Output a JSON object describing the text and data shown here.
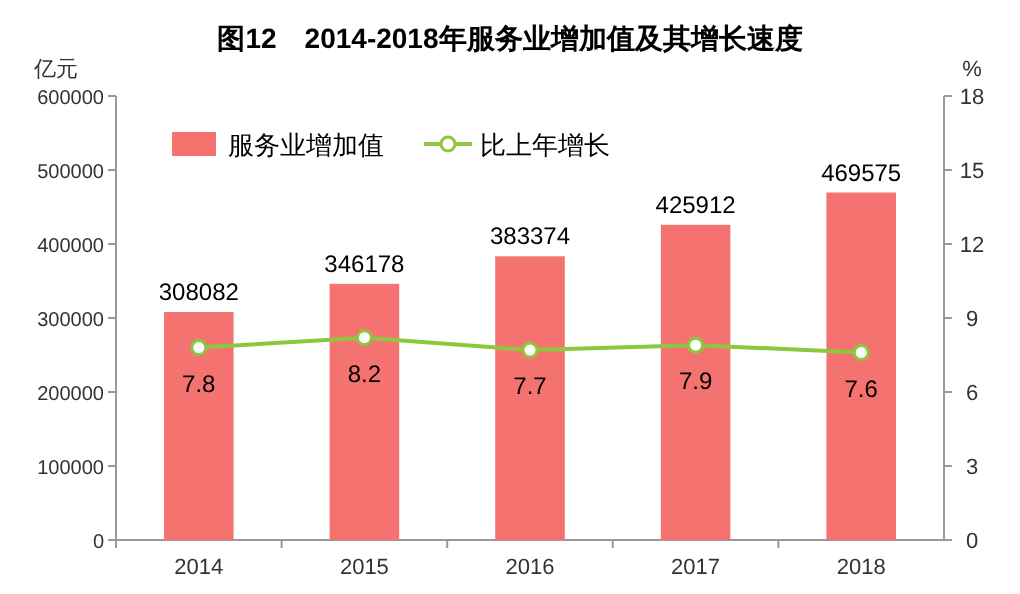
{
  "chart_data": {
    "type": "bar",
    "title": "图12　2014-2018年服务业增加值及其增长速度",
    "ylabel": "亿元",
    "y2label": "%",
    "categories": [
      "2014",
      "2015",
      "2016",
      "2017",
      "2018"
    ],
    "series": [
      {
        "name": "服务业增加值",
        "color": "#f4726f",
        "values": [
          308082,
          346178,
          383374,
          425912,
          469575
        ]
      },
      {
        "name": "比上年增长",
        "type": "line",
        "axis": "y2",
        "color": "#8dc63f",
        "marker": "circle",
        "values": [
          7.8,
          8.2,
          7.7,
          7.9,
          7.6
        ]
      }
    ],
    "ylim": [
      0,
      600000
    ],
    "yticks": [
      0,
      100000,
      200000,
      300000,
      400000,
      500000,
      600000
    ],
    "y2lim": [
      0,
      18
    ],
    "y2ticks": [
      0,
      3,
      6,
      9,
      12,
      15,
      18
    ],
    "data_labels": true,
    "legend": "top left"
  }
}
